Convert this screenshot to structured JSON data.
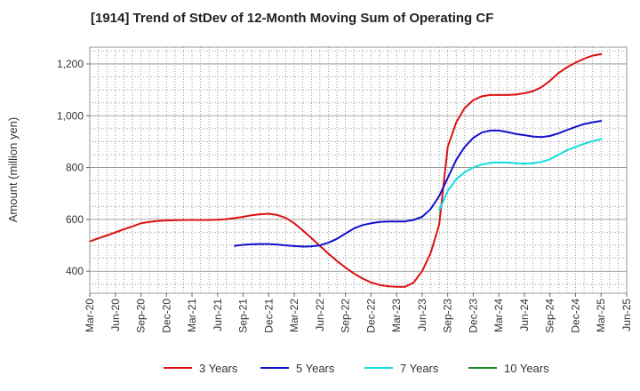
{
  "chart_data": {
    "type": "line",
    "title": "[1914]  Trend of StDev of 12-Month Moving Sum of Operating CF",
    "ylabel": "Amount (million yen)",
    "xlabel": "",
    "x_ticks": [
      "Mar-20",
      "Jun-20",
      "Sep-20",
      "Dec-20",
      "Mar-21",
      "Jun-21",
      "Sep-21",
      "Dec-21",
      "Mar-22",
      "Jun-22",
      "Sep-22",
      "Dec-22",
      "Mar-23",
      "Jun-23",
      "Sep-23",
      "Dec-23",
      "Mar-24",
      "Jun-24",
      "Sep-24",
      "Dec-24",
      "Mar-25",
      "Jun-25"
    ],
    "y_ticks": [
      400,
      600,
      800,
      1000,
      1200
    ],
    "y_tick_labels": [
      "400",
      "600",
      "800",
      "1,000",
      "1,200"
    ],
    "ylim": [
      315,
      1265
    ],
    "x_range_months": [
      "Mar-20",
      "Jun-25"
    ],
    "grid": true,
    "legend_position": "bottom",
    "series": [
      {
        "name": "3 Years",
        "color": "#dd1111",
        "x": [
          "Mar-20",
          "Apr-20",
          "May-20",
          "Jun-20",
          "Jul-20",
          "Aug-20",
          "Sep-20",
          "Oct-20",
          "Nov-20",
          "Dec-20",
          "Jan-21",
          "Feb-21",
          "Mar-21",
          "Apr-21",
          "May-21",
          "Jun-21",
          "Jul-21",
          "Aug-21",
          "Sep-21",
          "Oct-21",
          "Nov-21",
          "Dec-21",
          "Jan-22",
          "Feb-22",
          "Mar-22",
          "Apr-22",
          "May-22",
          "Jun-22",
          "Jul-22",
          "Aug-22",
          "Sep-22",
          "Oct-22",
          "Nov-22",
          "Dec-22",
          "Jan-23",
          "Feb-23",
          "Mar-23",
          "Apr-23",
          "May-23",
          "Jun-23",
          "Jul-23",
          "Aug-23",
          "Sep-23",
          "Oct-23",
          "Nov-23",
          "Dec-23",
          "Jan-24",
          "Feb-24",
          "Mar-24",
          "Apr-24",
          "May-24",
          "Jun-24",
          "Jul-24",
          "Aug-24",
          "Sep-24",
          "Oct-24",
          "Nov-24",
          "Dec-24",
          "Jan-25",
          "Feb-25",
          "Mar-25"
        ],
        "values": [
          515,
          527,
          538,
          550,
          562,
          573,
          585,
          590,
          594,
          596,
          597,
          598,
          598,
          598,
          598,
          599,
          601,
          605,
          610,
          616,
          620,
          622,
          617,
          606,
          585,
          557,
          528,
          498,
          468,
          440,
          414,
          391,
          372,
          357,
          347,
          342,
          340,
          340,
          356,
          400,
          470,
          580,
          880,
          975,
          1030,
          1060,
          1075,
          1080,
          1080,
          1080,
          1082,
          1087,
          1095,
          1110,
          1135,
          1165,
          1187,
          1205,
          1220,
          1232,
          1238
        ]
      },
      {
        "name": "5 Years",
        "color": "#1111cc",
        "x": [
          "Aug-21",
          "Sep-21",
          "Oct-21",
          "Nov-21",
          "Dec-21",
          "Jan-22",
          "Feb-22",
          "Mar-22",
          "Apr-22",
          "May-22",
          "Jun-22",
          "Jul-22",
          "Aug-22",
          "Sep-22",
          "Oct-22",
          "Nov-22",
          "Dec-22",
          "Jan-23",
          "Feb-23",
          "Mar-23",
          "Apr-23",
          "May-23",
          "Jun-23",
          "Jul-23",
          "Aug-23",
          "Sep-23",
          "Oct-23",
          "Nov-23",
          "Dec-23",
          "Jan-24",
          "Feb-24",
          "Mar-24",
          "Apr-24",
          "May-24",
          "Jun-24",
          "Jul-24",
          "Aug-24",
          "Sep-24",
          "Oct-24",
          "Nov-24",
          "Dec-24",
          "Jan-25",
          "Feb-25",
          "Mar-25"
        ],
        "values": [
          498,
          502,
          504,
          505,
          505,
          503,
          500,
          497,
          495,
          496,
          500,
          510,
          525,
          545,
          565,
          578,
          585,
          590,
          592,
          592,
          592,
          598,
          610,
          640,
          690,
          760,
          830,
          880,
          915,
          935,
          943,
          943,
          937,
          930,
          925,
          920,
          918,
          922,
          932,
          945,
          957,
          968,
          975,
          980
        ]
      },
      {
        "name": "7 Years",
        "color": "#11dddd",
        "x": [
          "Aug-23",
          "Sep-23",
          "Oct-23",
          "Nov-23",
          "Dec-23",
          "Jan-24",
          "Feb-24",
          "Mar-24",
          "Apr-24",
          "May-24",
          "Jun-24",
          "Jul-24",
          "Aug-24",
          "Sep-24",
          "Oct-24",
          "Nov-24",
          "Dec-24",
          "Jan-25",
          "Feb-25",
          "Mar-25"
        ],
        "values": [
          635,
          710,
          755,
          782,
          800,
          812,
          818,
          820,
          819,
          817,
          815,
          817,
          822,
          832,
          850,
          867,
          880,
          892,
          902,
          910
        ]
      },
      {
        "name": "10 Years",
        "color": "#228822",
        "x": [],
        "values": []
      }
    ]
  }
}
